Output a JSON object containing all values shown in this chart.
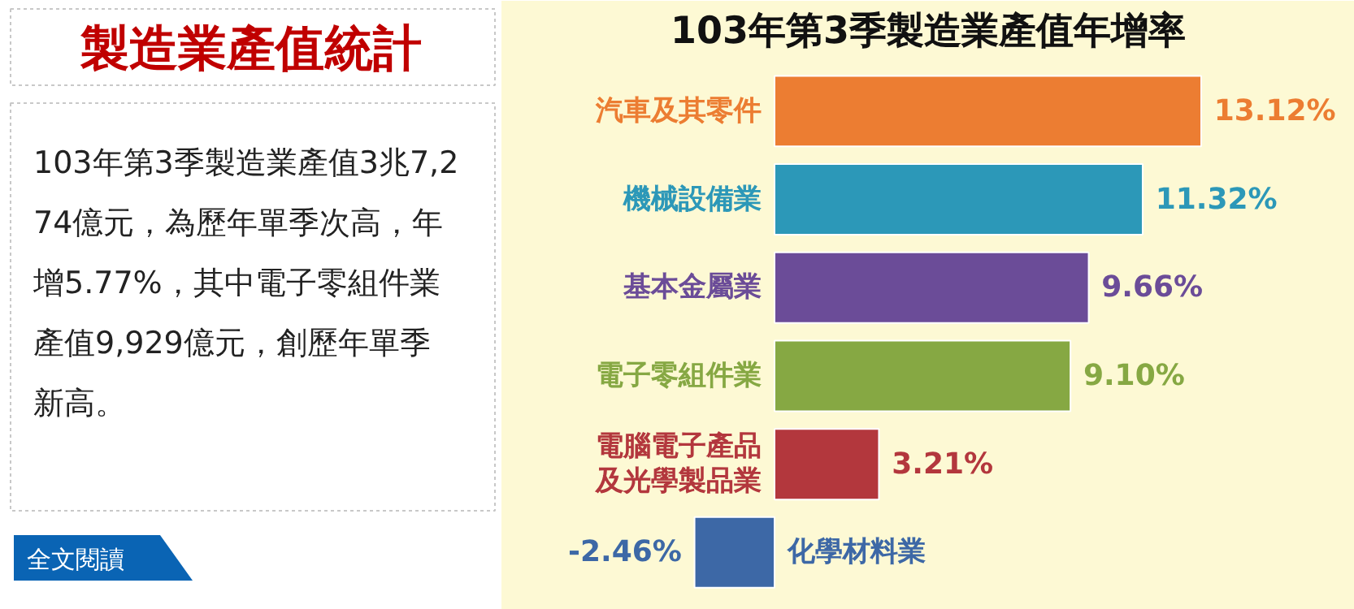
{
  "chart_data": [
    {
      "type": "other",
      "title": "製造業產值統計",
      "annotations": [
        "103年第3季製造業產值3兆7,274億元，為歷年單季次高，年增5.77%，其中電子零組件業產值9,929億元，創歷年單季新高。",
        "全文閱讀"
      ]
    },
    {
      "type": "bar",
      "orientation": "horizontal",
      "title": "103年第3季製造業產值年增率",
      "categories": [
        "汽車及其零件",
        "機械設備業",
        "基本金屬業",
        "電子零組件業",
        "電腦電子產品及光學製品業",
        "化學材料業"
      ],
      "values": [
        13.12,
        11.32,
        9.66,
        9.1,
        3.21,
        -2.46
      ],
      "value_labels": [
        "13.12%",
        "11.32%",
        "9.66%",
        "9.10%",
        "3.21%",
        "-2.46%"
      ],
      "colors": [
        "#ec7d32",
        "#2c98b8",
        "#6b4c98",
        "#86a843",
        "#b3373d",
        "#3d68a6"
      ]
    }
  ]
}
